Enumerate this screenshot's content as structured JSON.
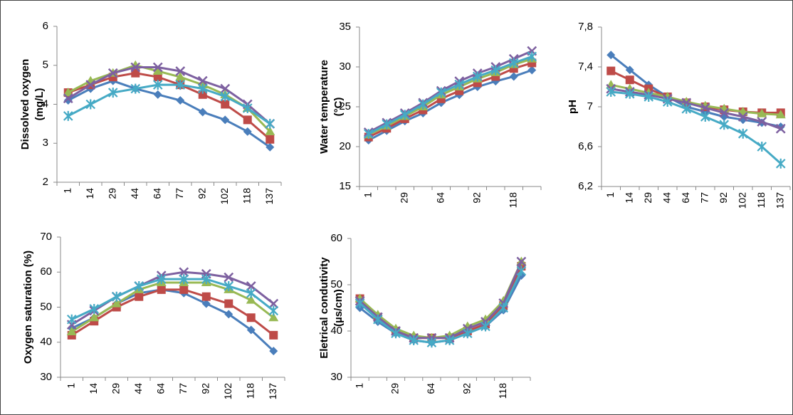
{
  "chart_data": [
    {
      "type": "line",
      "ylabel": [
        "Dissolved oxygen",
        "(mg/L)"
      ],
      "categories": [
        "1",
        "14",
        "29",
        "44",
        "64",
        "77",
        "92",
        "102",
        "118",
        "137"
      ],
      "ylim": [
        2,
        6
      ],
      "yticks": [
        2,
        3,
        4,
        5,
        6
      ],
      "series": [
        {
          "color": "#4a7ebb",
          "marker": "diamond",
          "values": [
            4.1,
            4.4,
            4.6,
            4.4,
            4.25,
            4.1,
            3.8,
            3.6,
            3.3,
            2.9
          ]
        },
        {
          "color": "#be4b48",
          "marker": "square",
          "values": [
            4.3,
            4.5,
            4.7,
            4.8,
            4.7,
            4.5,
            4.25,
            4.0,
            3.6,
            3.1
          ]
        },
        {
          "color": "#98b954",
          "marker": "triangle",
          "values": [
            4.3,
            4.6,
            4.8,
            5.0,
            4.85,
            4.7,
            4.5,
            4.25,
            3.9,
            3.3
          ]
        },
        {
          "color": "#7d60a0",
          "marker": "x",
          "values": [
            4.15,
            4.5,
            4.8,
            4.95,
            4.95,
            4.85,
            4.6,
            4.4,
            4.0,
            3.5
          ]
        },
        {
          "color": "#46aac5",
          "marker": "star",
          "values": [
            3.7,
            4.0,
            4.3,
            4.4,
            4.5,
            4.5,
            4.4,
            4.2,
            3.9,
            3.5
          ]
        }
      ]
    },
    {
      "type": "line",
      "ylabel": [
        "Water temperature",
        "(°C)"
      ],
      "categories": [
        "1",
        null,
        "29",
        null,
        "64",
        null,
        "92",
        null,
        "118",
        null
      ],
      "ylim": [
        15,
        35
      ],
      "yticks": [
        15,
        20,
        25,
        30,
        35
      ],
      "series": [
        {
          "color": "#4a7ebb",
          "marker": "diamond",
          "values": [
            20.8,
            22,
            23.2,
            24.2,
            25.5,
            26.5,
            27.5,
            28.2,
            28.8,
            29.6
          ]
        },
        {
          "color": "#be4b48",
          "marker": "square",
          "values": [
            21.2,
            22.3,
            23.5,
            24.6,
            26,
            27,
            28,
            28.8,
            29.8,
            30.5
          ]
        },
        {
          "color": "#98b954",
          "marker": "triangle",
          "values": [
            21.5,
            22.6,
            23.8,
            25,
            26.5,
            27.5,
            28.5,
            29.3,
            30.3,
            31
          ]
        },
        {
          "color": "#7d60a0",
          "marker": "x",
          "values": [
            21.8,
            23,
            24.2,
            25.5,
            27,
            28.2,
            29.2,
            30,
            31,
            32
          ]
        },
        {
          "color": "#46aac5",
          "marker": "star",
          "values": [
            21.6,
            22.8,
            24,
            25.3,
            26.8,
            27.8,
            28.8,
            29.6,
            30.5,
            31.3
          ]
        }
      ]
    },
    {
      "type": "line",
      "ylabel": [
        "pH"
      ],
      "categories": [
        "1",
        "14",
        "29",
        "44",
        "64",
        "77",
        "92",
        "102",
        "118",
        "137"
      ],
      "ylim": [
        6.2,
        7.8
      ],
      "yticks": [
        {
          "value": 6.2,
          "label": "6,2"
        },
        {
          "value": 6.6,
          "label": "6,6"
        },
        7,
        {
          "value": 7.4,
          "label": "7,4"
        },
        {
          "value": 7.8,
          "label": "7,8"
        }
      ],
      "series": [
        {
          "color": "#4a7ebb",
          "marker": "diamond",
          "values": [
            7.52,
            7.37,
            7.22,
            7.1,
            7.0,
            6.95,
            6.9,
            6.87,
            6.84,
            6.8
          ]
        },
        {
          "color": "#be4b48",
          "marker": "square",
          "values": [
            7.36,
            7.27,
            7.18,
            7.1,
            7.04,
            7.0,
            6.97,
            6.95,
            6.94,
            6.94
          ]
        },
        {
          "color": "#98b954",
          "marker": "triangle",
          "values": [
            7.22,
            7.18,
            7.14,
            7.1,
            7.05,
            7.01,
            6.98,
            6.95,
            6.93,
            6.92
          ]
        },
        {
          "color": "#7d60a0",
          "marker": "x",
          "values": [
            7.18,
            7.15,
            7.12,
            7.08,
            7.04,
            6.99,
            6.94,
            6.9,
            6.85,
            6.78
          ]
        },
        {
          "color": "#46aac5",
          "marker": "star",
          "values": [
            7.15,
            7.13,
            7.1,
            7.05,
            6.98,
            6.9,
            6.82,
            6.73,
            6.6,
            6.43
          ]
        }
      ]
    },
    {
      "type": "line",
      "ylabel": [
        "Oxygen saturation (%)"
      ],
      "categories": [
        "1",
        "14",
        "29",
        "44",
        "64",
        "77",
        "92",
        "102",
        "118",
        "137"
      ],
      "ylim": [
        30,
        70
      ],
      "yticks": [
        30,
        40,
        50,
        60,
        70
      ],
      "series": [
        {
          "color": "#4a7ebb",
          "marker": "diamond",
          "values": [
            44,
            47,
            51,
            54,
            55,
            54,
            51,
            48,
            43.5,
            37.5
          ]
        },
        {
          "color": "#be4b48",
          "marker": "square",
          "values": [
            42,
            46,
            50,
            53,
            55,
            55,
            53,
            51,
            47,
            42
          ]
        },
        {
          "color": "#98b954",
          "marker": "triangle",
          "values": [
            43,
            47,
            51,
            55,
            57,
            57,
            57,
            55,
            52,
            47
          ]
        },
        {
          "color": "#7d60a0",
          "marker": "x",
          "values": [
            45,
            49,
            53,
            56,
            59,
            60,
            59.5,
            58.5,
            56,
            51
          ]
        },
        {
          "color": "#46aac5",
          "marker": "star",
          "values": [
            46.5,
            49.5,
            53,
            56,
            58,
            58,
            58,
            56,
            54,
            49
          ]
        }
      ]
    },
    {
      "type": "line",
      "ylabel": [
        "Eletrical condutivity",
        "(µs/cm)"
      ],
      "categories": [
        "1",
        null,
        "29",
        null,
        "64",
        null,
        "92",
        null,
        "118",
        null
      ],
      "ylim": [
        30,
        60
      ],
      "yticks": [
        30,
        40,
        50,
        60
      ],
      "series": [
        {
          "color": "#4a7ebb",
          "marker": "diamond",
          "values": [
            45,
            42,
            39.5,
            38,
            37.5,
            38,
            39.5,
            41,
            44.5,
            52
          ]
        },
        {
          "color": "#be4b48",
          "marker": "square",
          "values": [
            47,
            43,
            40,
            38.5,
            38.5,
            38.5,
            40,
            41.5,
            45.5,
            54
          ]
        },
        {
          "color": "#98b954",
          "marker": "triangle",
          "values": [
            47,
            43.5,
            40.5,
            39,
            38.5,
            39,
            41,
            42.5,
            46.5,
            55
          ]
        },
        {
          "color": "#7d60a0",
          "marker": "x",
          "values": [
            46.5,
            43,
            40,
            38.5,
            38.5,
            38.5,
            40.5,
            42,
            46,
            55
          ]
        },
        {
          "color": "#46aac5",
          "marker": "star",
          "values": [
            46,
            42.5,
            39.5,
            38,
            37.5,
            38,
            39.5,
            41,
            45,
            53
          ]
        }
      ]
    }
  ]
}
